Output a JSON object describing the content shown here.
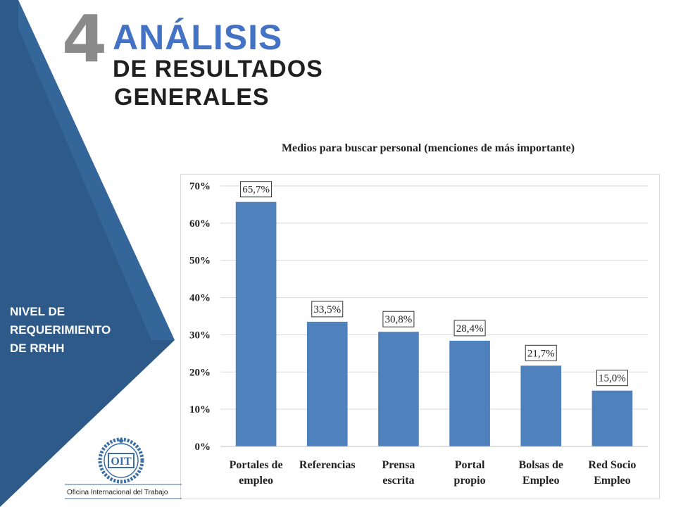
{
  "header": {
    "number": "4",
    "line1": "ANÁLISIS",
    "line2": "DE RESULTADOS",
    "line3": "GENERALES"
  },
  "sidebar": {
    "label_lines": [
      "NIVEL DE",
      "REQUERIMIENTO",
      "DE RRHH"
    ],
    "panel_color": "#2e5a8a",
    "panel_color_light": "#3b6ea5"
  },
  "logo": {
    "acronym": "OIT",
    "caption": "Oficina Internacional del Trabajo",
    "color": "#3b6ea5"
  },
  "chart_data": {
    "type": "bar",
    "title": "Medios para buscar personal (menciones de más importante)",
    "categories": [
      [
        "Portales de",
        "empleo"
      ],
      [
        "Referencias"
      ],
      [
        "Prensa",
        "escrita"
      ],
      [
        "Portal",
        "propio"
      ],
      [
        "Bolsas de",
        "Empleo"
      ],
      [
        "Red Socio",
        "Empleo"
      ]
    ],
    "values": [
      65.7,
      33.5,
      30.8,
      28.4,
      21.7,
      15.0
    ],
    "data_labels": [
      "65,7%",
      "33,5%",
      "30,8%",
      "28,4%",
      "21,7%",
      "15,0%"
    ],
    "y_ticks": [
      "0%",
      "10%",
      "20%",
      "30%",
      "40%",
      "50%",
      "60%",
      "70%"
    ],
    "ylim": [
      0,
      70
    ],
    "grid": true,
    "bar_color": "#4f81bd",
    "legend": false
  }
}
